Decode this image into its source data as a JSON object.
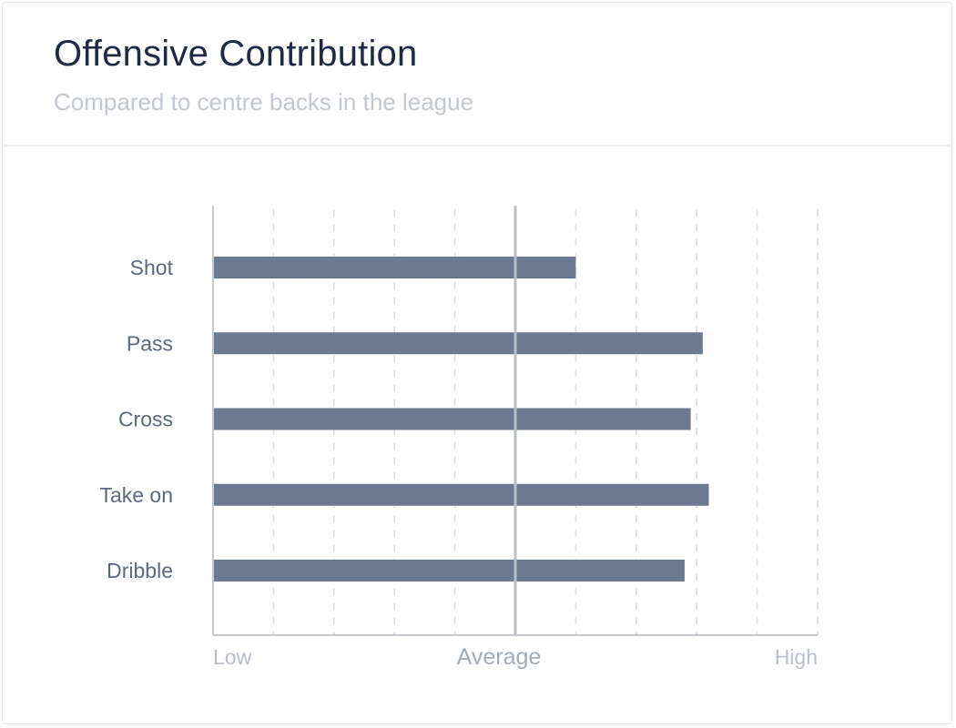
{
  "header": {
    "title": "Offensive Contribution",
    "subtitle": "Compared to centre backs in the league"
  },
  "colors": {
    "bar": "#6c7a91",
    "grid": "#d9dde4",
    "axis": "#c4c9d2",
    "average_line": "#b9bec8"
  },
  "chart_data": {
    "type": "bar",
    "orientation": "horizontal",
    "title": "Offensive Contribution",
    "subtitle": "Compared to centre backs in the league",
    "categories": [
      "Shot",
      "Pass",
      "Cross",
      "Take on",
      "Dribble"
    ],
    "values": [
      0.6,
      0.81,
      0.79,
      0.82,
      0.78
    ],
    "xlim": [
      0,
      1
    ],
    "x_tick_labels": [
      "Low",
      "Average",
      "High"
    ],
    "x_tick_positions": [
      0,
      0.5,
      1
    ],
    "average_marker": 0.5,
    "grid": "vertical-dashed",
    "grid_divisions": 10
  }
}
